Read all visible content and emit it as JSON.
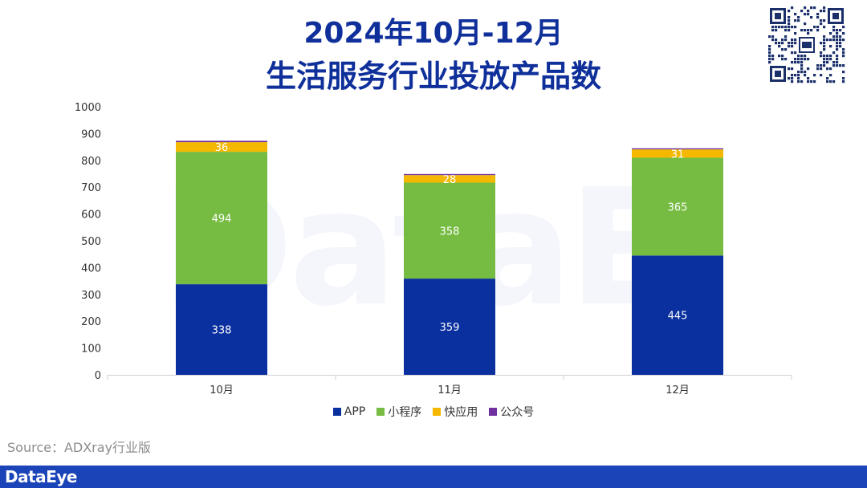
{
  "header": {
    "title_line1": "2024年10月-12月",
    "title_line2": "生活服务行业投放产品数"
  },
  "watermark": "DataEye",
  "source": "Source：ADXray行业版",
  "footer": {
    "logo": "DataEye"
  },
  "colors": {
    "title": "#0f2f9a",
    "APP": "#0a2f9e",
    "小程序": "#76bc42",
    "快应用": "#f5b800",
    "公众号": "#7030a0",
    "footer": "#1b44b8"
  },
  "chart_data": {
    "type": "bar",
    "stacked": true,
    "categories": [
      "10月",
      "11月",
      "12月"
    ],
    "series": [
      {
        "name": "APP",
        "values": [
          338,
          359,
          445
        ],
        "color": "#0a2f9e",
        "labels_shown": true
      },
      {
        "name": "小程序",
        "values": [
          494,
          358,
          365
        ],
        "color": "#76bc42",
        "labels_shown": true
      },
      {
        "name": "快应用",
        "values": [
          36,
          28,
          31
        ],
        "color": "#f5b800",
        "labels_shown": true
      },
      {
        "name": "公众号",
        "values": [
          5,
          4,
          4
        ],
        "color": "#7030a0",
        "labels_shown": false
      }
    ],
    "ylim": [
      0,
      1000
    ],
    "yticks": [
      0,
      100,
      200,
      300,
      400,
      500,
      600,
      700,
      800,
      900,
      1000
    ],
    "grid": false,
    "legend_position": "bottom"
  }
}
